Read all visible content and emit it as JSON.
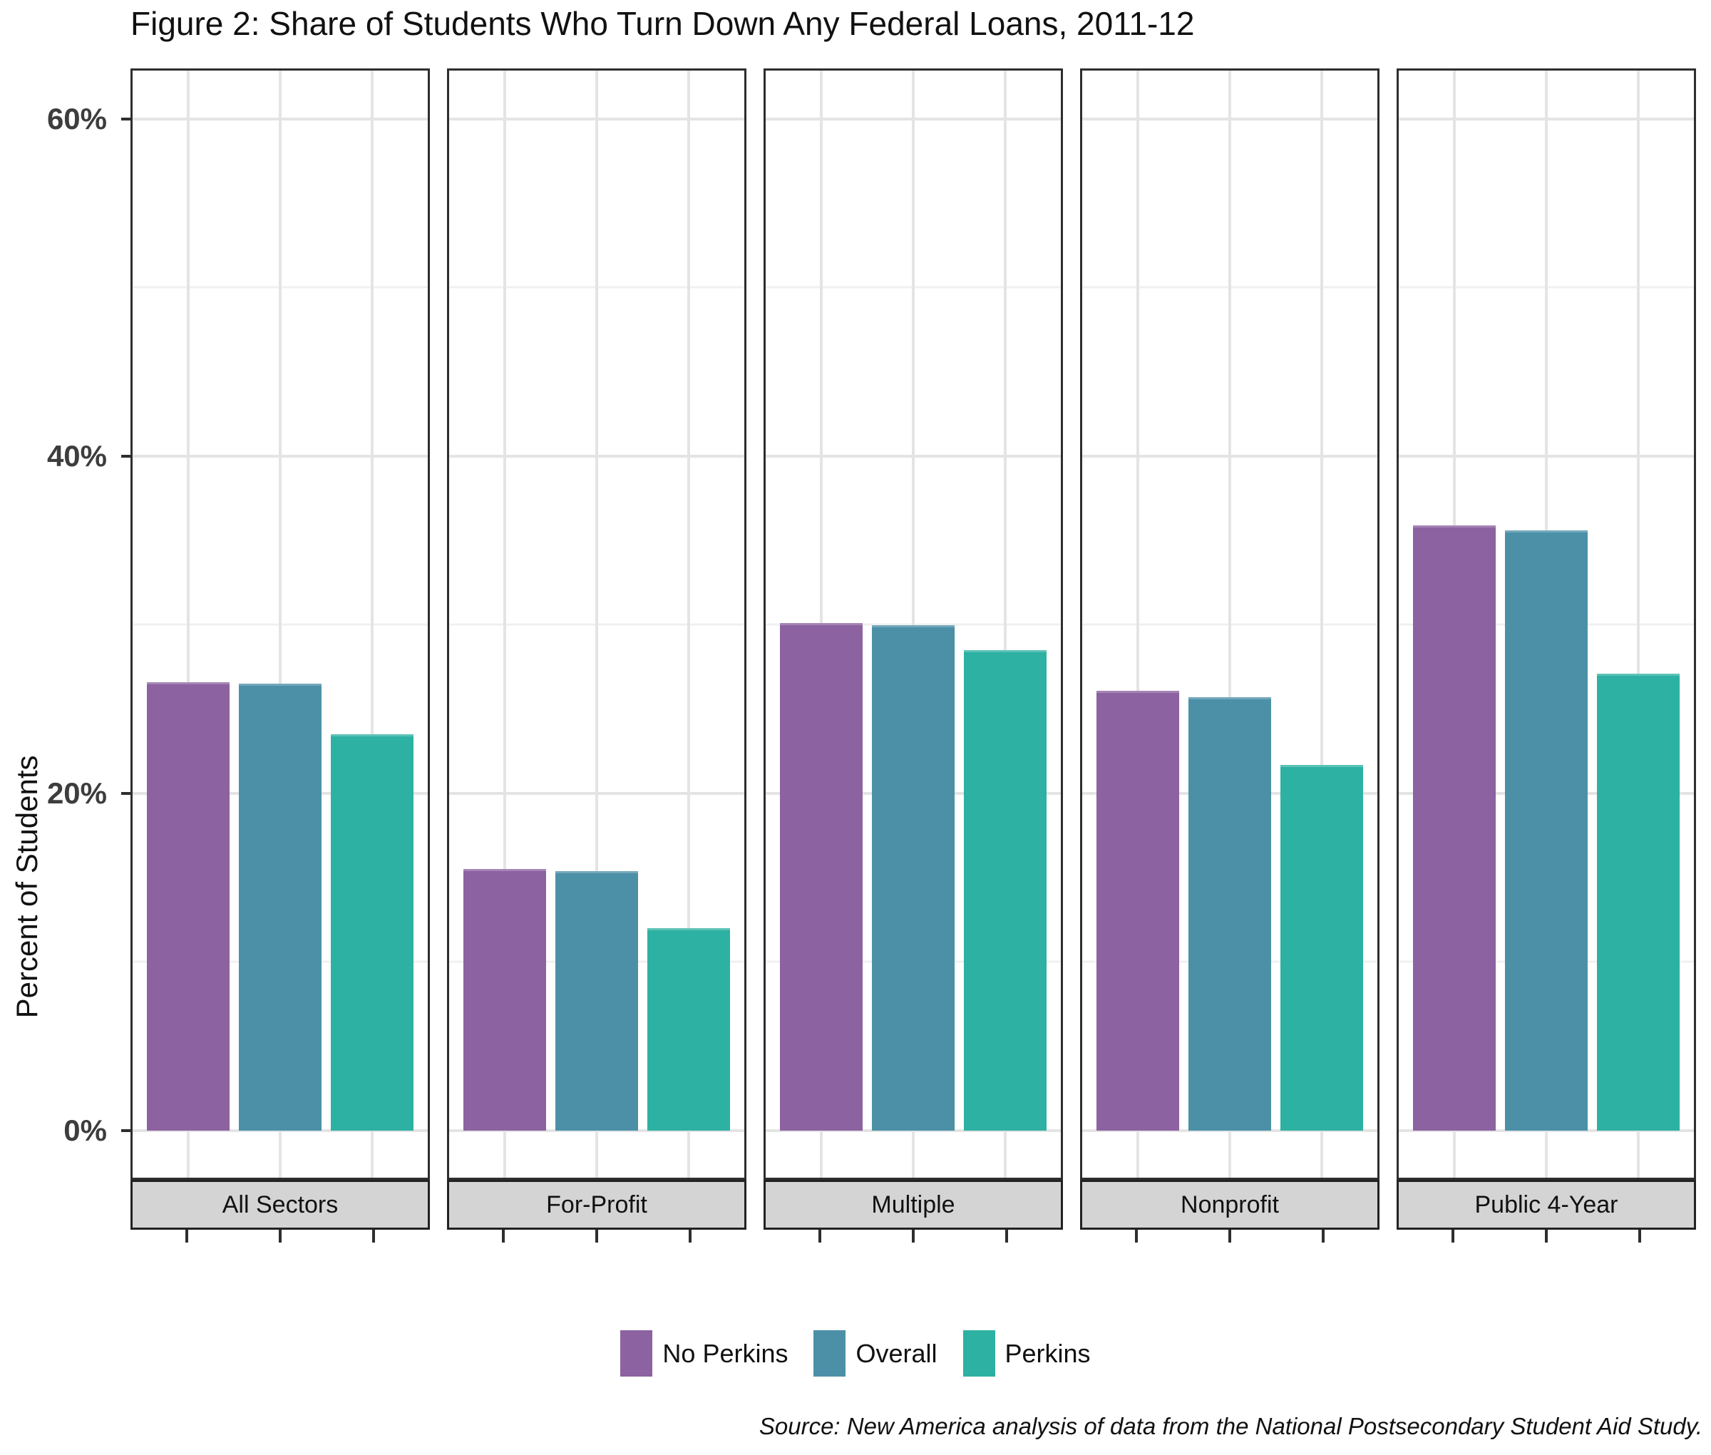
{
  "title": "Figure 2: Share of Students Who Turn Down Any Federal Loans, 2011-12",
  "source_note": "Source: New America analysis of data from the National Postsecondary Student Aid Study.",
  "colors": {
    "no_perkins": "#8c62a0",
    "overall": "#4c90a8",
    "perkins": "#2db1a2",
    "strip_background": "#d4d4d4",
    "panel_border": "#2e2e2e",
    "grid_major": "#e4e4e4",
    "grid_minor": "#f0f0f0"
  },
  "chart_data": {
    "type": "bar",
    "title": "Figure 2: Share of Students Who Turn Down Any Federal Loans, 2011-12",
    "xlabel": "",
    "ylabel": "Percent of Students",
    "facets": [
      "All Sectors",
      "For-Profit",
      "Multiple",
      "Nonprofit",
      "Public 4-Year"
    ],
    "series": [
      {
        "name": "No Perkins",
        "color": "#8c62a0",
        "values": [
          26.6,
          15.5,
          30.1,
          26.1,
          35.9
        ]
      },
      {
        "name": "Overall",
        "color": "#4c90a8",
        "values": [
          26.5,
          15.4,
          30.0,
          25.7,
          35.6
        ]
      },
      {
        "name": "Perkins",
        "color": "#2db1a2",
        "values": [
          23.5,
          12.0,
          28.5,
          21.7,
          27.1
        ]
      }
    ],
    "y_ticks": [
      {
        "value": 0,
        "label": "0%"
      },
      {
        "value": 20,
        "label": "20%"
      },
      {
        "value": 40,
        "label": "40%"
      },
      {
        "value": 60,
        "label": "60%"
      }
    ],
    "y_minor_ticks": [
      10,
      30,
      50
    ],
    "ylim": [
      -2.9,
      63
    ],
    "grid": true,
    "legend_position": "bottom",
    "source": "Source: New America analysis of data from the National Postsecondary Student Aid Study."
  }
}
